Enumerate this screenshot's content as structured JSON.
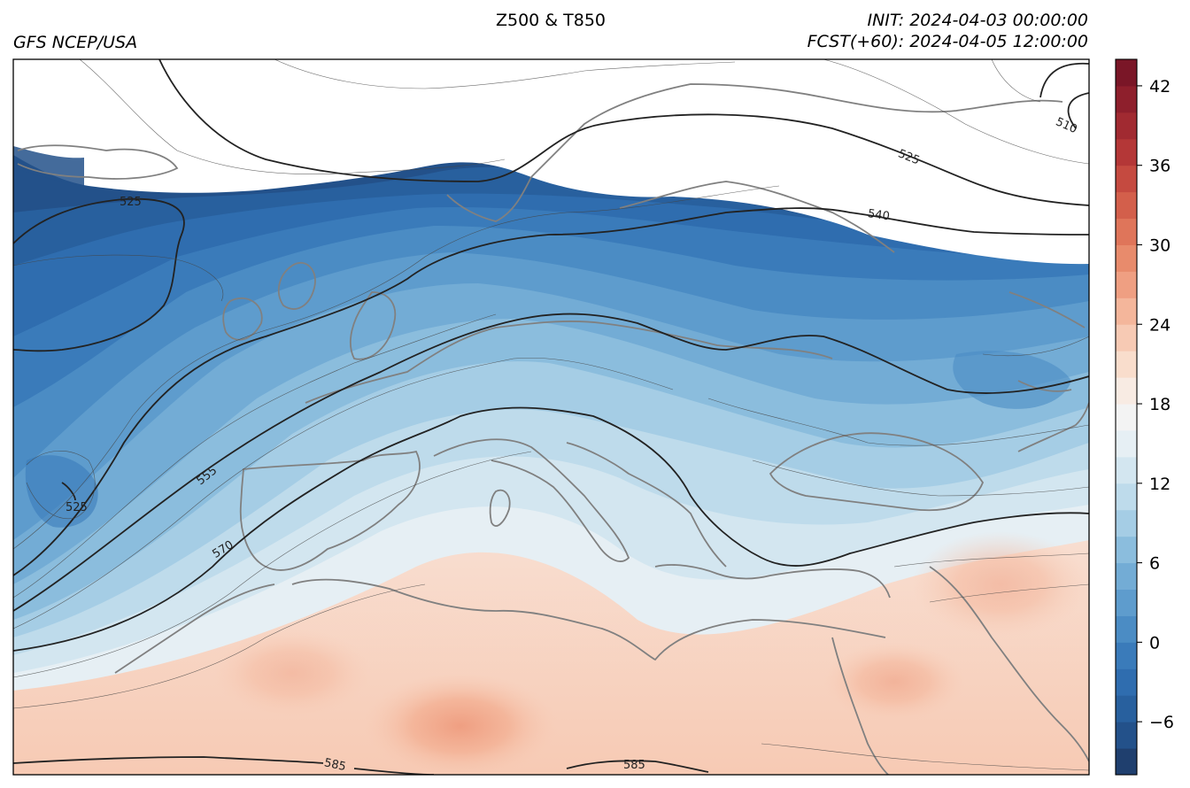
{
  "header": {
    "model": "GFS NCEP/USA",
    "title": "Z500 & T850",
    "init": "INIT: 2024-04-03 00:00:00",
    "forecast": "FCST(+60): 2024-04-05 12:00:00"
  },
  "colorbar": {
    "tick_labels": [
      "42",
      "36",
      "30",
      "24",
      "18",
      "12",
      "6",
      "0",
      "−6"
    ],
    "tick_values": [
      42,
      36,
      30,
      24,
      18,
      12,
      6,
      0,
      -6
    ],
    "min": -10,
    "max": 44,
    "step": 2,
    "colors": [
      "#1f3f6e",
      "#23518a",
      "#28609e",
      "#2f6daf",
      "#3a7bba",
      "#4b8cc4",
      "#5e9ccd",
      "#73acd5",
      "#8bbddd",
      "#a5cde5",
      "#bedbeb",
      "#d3e6f0",
      "#e6eff4",
      "#f3f3f3",
      "#f8ebe3",
      "#f9ddcc",
      "#f7cab4",
      "#f4b69b",
      "#ef9f82",
      "#e88b6c",
      "#df755a",
      "#d35f4b",
      "#c54a40",
      "#b43737",
      "#a12a31",
      "#8e1f2c",
      "#7a1627"
    ]
  },
  "contour_labels": [
    "525",
    "555",
    "570",
    "525",
    "525",
    "540",
    "510",
    "585",
    "585"
  ]
}
